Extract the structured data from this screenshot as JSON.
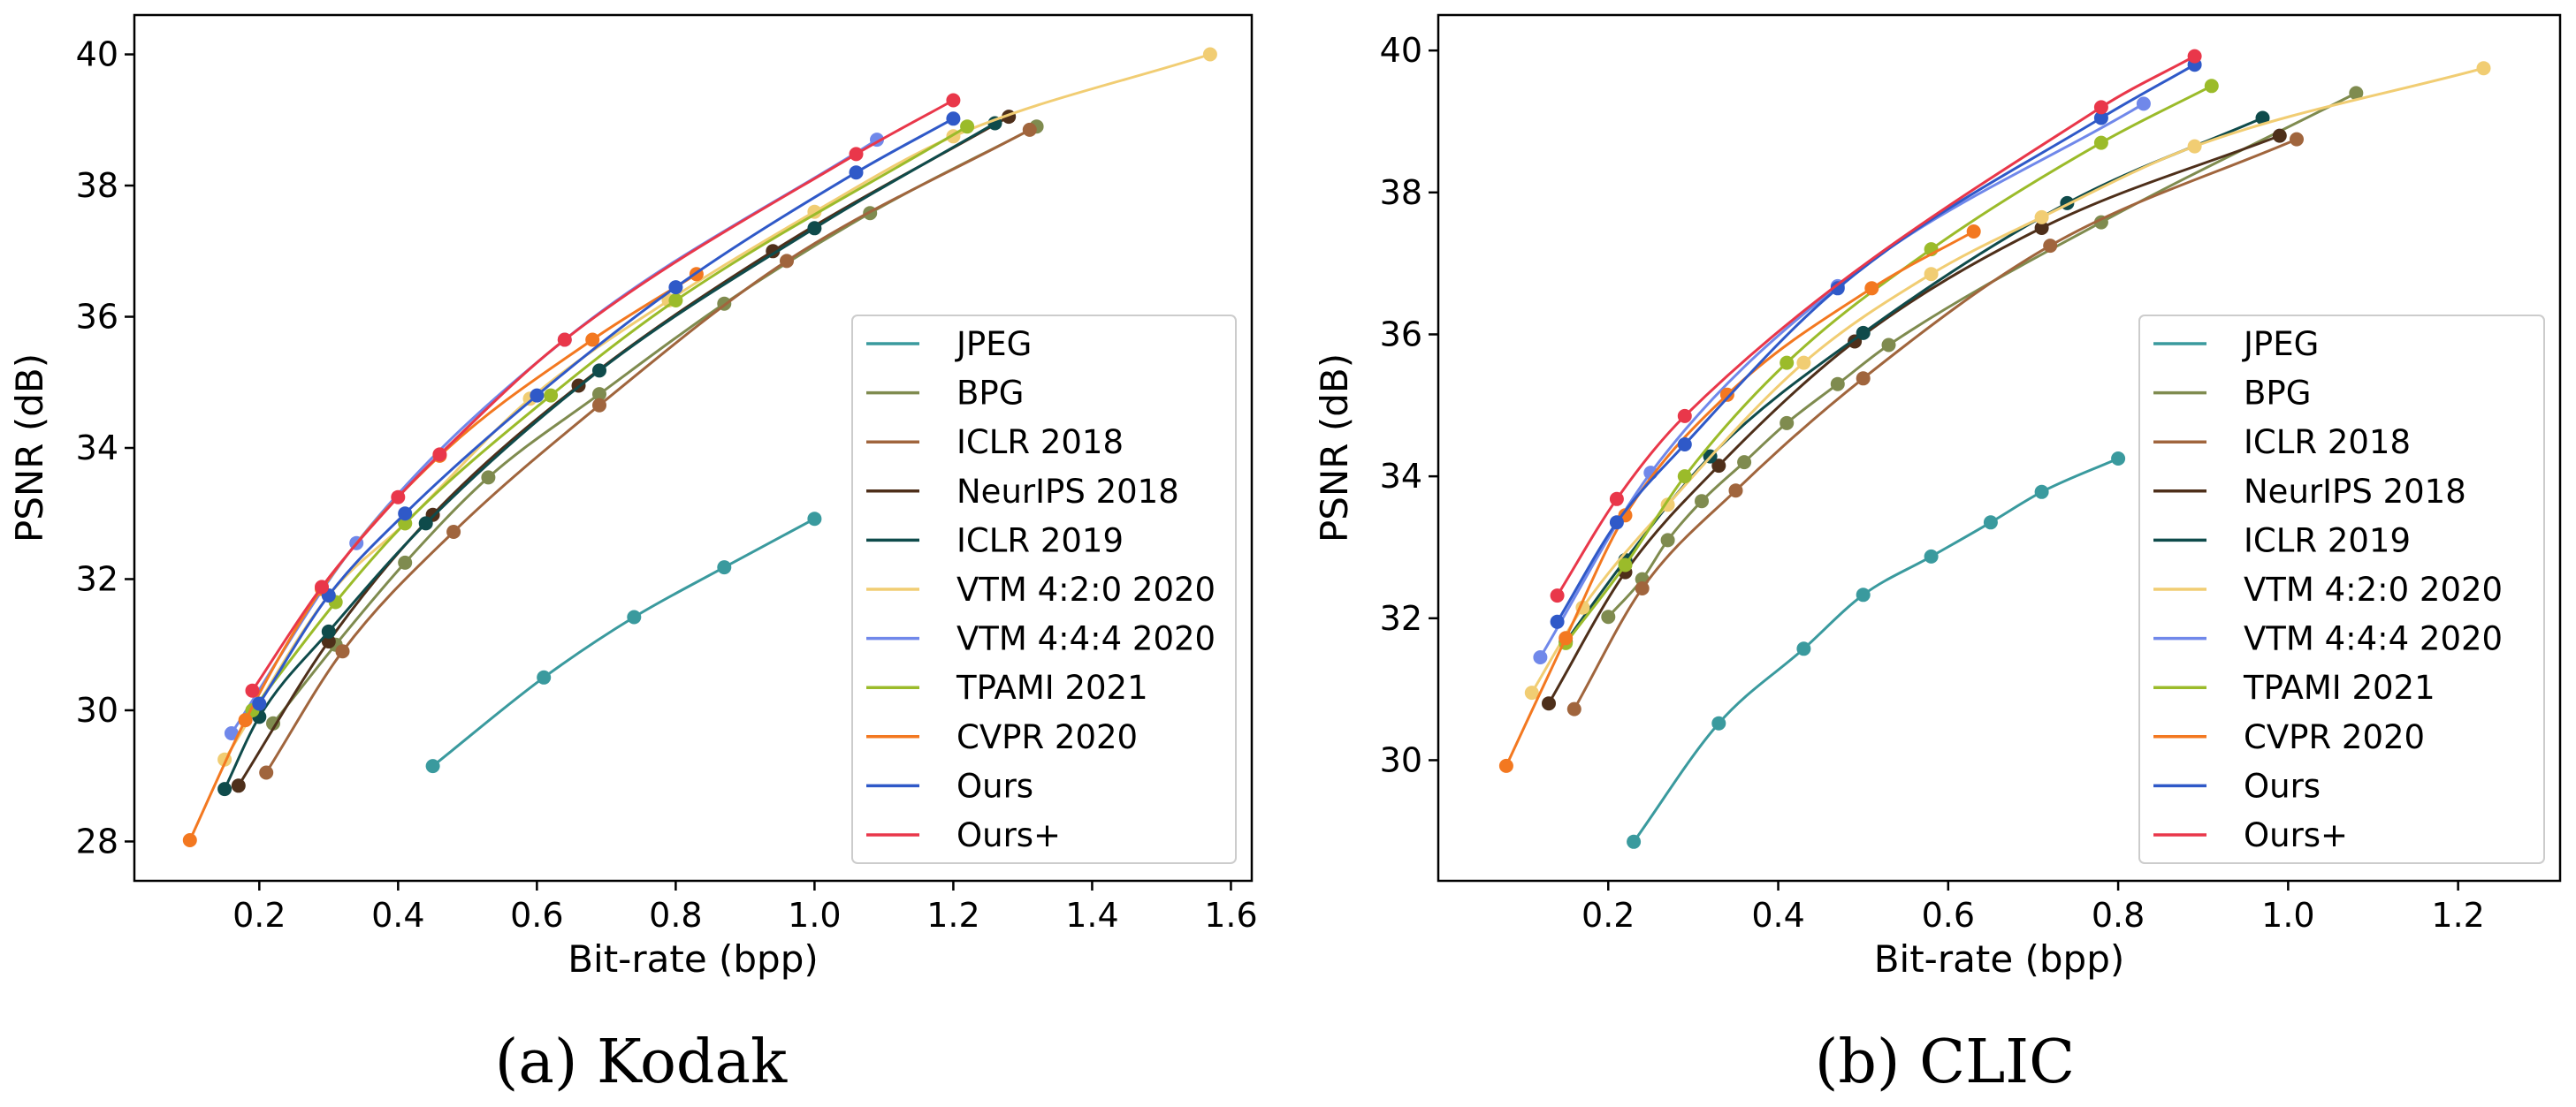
{
  "series_styles": [
    {
      "name": "JPEG",
      "color": "#3a9a9e"
    },
    {
      "name": "BPG",
      "color": "#7f8b4f"
    },
    {
      "name": "ICLR 2018",
      "color": "#a0653d"
    },
    {
      "name": "NeurIPS 2018",
      "color": "#4e2f1a"
    },
    {
      "name": "ICLR 2019",
      "color": "#0f4b4b"
    },
    {
      "name": "VTM 4:2:0 2020",
      "color": "#f1cd73"
    },
    {
      "name": "VTM 4:4:4 2020",
      "color": "#7088ea"
    },
    {
      "name": "TPAMI 2021",
      "color": "#9bbb2a"
    },
    {
      "name": "CVPR 2020",
      "color": "#f37820"
    },
    {
      "name": "Ours",
      "color": "#2f59c8"
    },
    {
      "name": "Ours+",
      "color": "#e9374a"
    }
  ],
  "chart_data": [
    {
      "type": "line",
      "caption": "(a) Kodak",
      "xlabel": "Bit-rate (bpp)",
      "ylabel": "PSNR (dB)",
      "xlim": [
        0.02,
        1.63
      ],
      "ylim": [
        27.4,
        40.6
      ],
      "xticks": [
        "0.2",
        "0.4",
        "0.6",
        "0.8",
        "1.0",
        "1.2",
        "1.4",
        "1.6"
      ],
      "yticks": [
        "28",
        "30",
        "32",
        "34",
        "36",
        "38",
        "40"
      ],
      "legend_position": "lower-right",
      "grid": false,
      "series": [
        {
          "name": "JPEG",
          "x": [
            0.45,
            0.61,
            0.74,
            0.87,
            1.0
          ],
          "y": [
            29.15,
            30.5,
            31.42,
            32.18,
            32.92
          ]
        },
        {
          "name": "BPG",
          "x": [
            0.22,
            0.31,
            0.41,
            0.53,
            0.69,
            0.87,
            1.08,
            1.32
          ],
          "y": [
            29.8,
            31.0,
            32.25,
            33.55,
            34.82,
            36.2,
            37.58,
            38.9
          ]
        },
        {
          "name": "ICLR 2018",
          "x": [
            0.21,
            0.32,
            0.48,
            0.69,
            0.96,
            1.31
          ],
          "y": [
            29.05,
            30.9,
            32.72,
            34.65,
            36.85,
            38.85
          ]
        },
        {
          "name": "NeurIPS 2018",
          "x": [
            0.17,
            0.3,
            0.45,
            0.66,
            0.94,
            1.28
          ],
          "y": [
            28.85,
            31.05,
            32.98,
            34.95,
            37.0,
            39.05
          ]
        },
        {
          "name": "ICLR 2019",
          "x": [
            0.15,
            0.2,
            0.3,
            0.44,
            0.69,
            1.0,
            1.26
          ],
          "y": [
            28.8,
            29.9,
            31.2,
            32.85,
            35.18,
            37.35,
            38.95
          ]
        },
        {
          "name": "VTM 4:2:0 2020",
          "x": [
            0.15,
            0.3,
            0.41,
            0.59,
            0.79,
            1.0,
            1.2,
            1.57
          ],
          "y": [
            29.25,
            31.75,
            32.85,
            34.75,
            36.25,
            37.6,
            38.75,
            40.0
          ]
        },
        {
          "name": "VTM 4:4:4 2020",
          "x": [
            0.16,
            0.34,
            0.64,
            1.09
          ],
          "y": [
            29.65,
            32.55,
            35.65,
            38.7
          ]
        },
        {
          "name": "TPAMI 2021",
          "x": [
            0.19,
            0.31,
            0.41,
            0.62,
            0.8,
            1.22
          ],
          "y": [
            30.0,
            31.65,
            32.85,
            34.8,
            36.25,
            38.9
          ]
        },
        {
          "name": "CVPR 2020",
          "x": [
            0.1,
            0.18,
            0.29,
            0.46,
            0.68,
            0.83
          ],
          "y": [
            28.02,
            29.85,
            31.85,
            33.88,
            35.65,
            36.65
          ]
        },
        {
          "name": "Ours",
          "x": [
            0.2,
            0.3,
            0.41,
            0.6,
            0.8,
            1.06,
            1.2
          ],
          "y": [
            30.1,
            31.75,
            33.0,
            34.8,
            36.45,
            38.2,
            39.02
          ]
        },
        {
          "name": "Ours+",
          "x": [
            0.19,
            0.29,
            0.4,
            0.46,
            0.64,
            1.06,
            1.2
          ],
          "y": [
            30.3,
            31.88,
            33.25,
            33.9,
            35.65,
            38.48,
            39.3
          ]
        }
      ]
    },
    {
      "type": "line",
      "caption": "(b) CLIC",
      "xlabel": "Bit-rate (bpp)",
      "ylabel": "PSNR (dB)",
      "xlim": [
        0.0,
        1.32
      ],
      "ylim": [
        28.3,
        40.5
      ],
      "xticks": [
        "0.2",
        "0.4",
        "0.6",
        "0.8",
        "1.0",
        "1.2"
      ],
      "yticks": [
        "30",
        "32",
        "34",
        "36",
        "38",
        "40"
      ],
      "legend_position": "lower-right",
      "grid": false,
      "series": [
        {
          "name": "JPEG",
          "x": [
            0.23,
            0.33,
            0.43,
            0.5,
            0.58,
            0.65,
            0.71,
            0.8
          ],
          "y": [
            28.85,
            30.52,
            31.57,
            32.33,
            32.87,
            33.35,
            33.78,
            34.25
          ]
        },
        {
          "name": "BPG",
          "x": [
            0.2,
            0.24,
            0.27,
            0.31,
            0.36,
            0.41,
            0.47,
            0.53,
            0.78,
            1.08
          ],
          "y": [
            32.02,
            32.55,
            33.1,
            33.65,
            34.2,
            34.75,
            35.3,
            35.85,
            37.58,
            39.4
          ]
        },
        {
          "name": "ICLR 2018",
          "x": [
            0.16,
            0.24,
            0.35,
            0.5,
            0.72,
            1.01
          ],
          "y": [
            30.72,
            32.42,
            33.8,
            35.38,
            37.25,
            38.75
          ]
        },
        {
          "name": "NeurIPS 2018",
          "x": [
            0.13,
            0.22,
            0.33,
            0.49,
            0.71,
            0.99
          ],
          "y": [
            30.8,
            32.65,
            34.15,
            35.9,
            37.5,
            38.8
          ]
        },
        {
          "name": "ICLR 2019",
          "x": [
            0.15,
            0.22,
            0.32,
            0.5,
            0.74,
            0.97
          ],
          "y": [
            31.67,
            32.82,
            34.28,
            36.02,
            37.85,
            39.05
          ]
        },
        {
          "name": "VTM 4:2:0 2020",
          "x": [
            0.11,
            0.17,
            0.27,
            0.43,
            0.58,
            0.71,
            0.89,
            1.23
          ],
          "y": [
            30.95,
            32.15,
            33.6,
            35.6,
            36.85,
            37.65,
            38.65,
            39.75
          ]
        },
        {
          "name": "VTM 4:4:4 2020",
          "x": [
            0.12,
            0.25,
            0.47,
            0.83
          ],
          "y": [
            31.45,
            34.05,
            36.68,
            39.25
          ]
        },
        {
          "name": "TPAMI 2021",
          "x": [
            0.15,
            0.22,
            0.29,
            0.41,
            0.58,
            0.78,
            0.91
          ],
          "y": [
            31.65,
            32.75,
            34.0,
            35.6,
            37.2,
            38.7,
            39.5
          ]
        },
        {
          "name": "CVPR 2020",
          "x": [
            0.08,
            0.15,
            0.22,
            0.34,
            0.51,
            0.63
          ],
          "y": [
            29.92,
            31.72,
            33.45,
            35.15,
            36.65,
            37.45
          ]
        },
        {
          "name": "Ours",
          "x": [
            0.14,
            0.21,
            0.29,
            0.47,
            0.78,
            0.89
          ],
          "y": [
            31.95,
            33.35,
            34.45,
            36.65,
            39.05,
            39.8
          ]
        },
        {
          "name": "Ours+",
          "x": [
            0.14,
            0.21,
            0.29,
            0.78,
            0.89
          ],
          "y": [
            32.32,
            33.68,
            34.85,
            39.2,
            39.92
          ]
        }
      ]
    }
  ]
}
